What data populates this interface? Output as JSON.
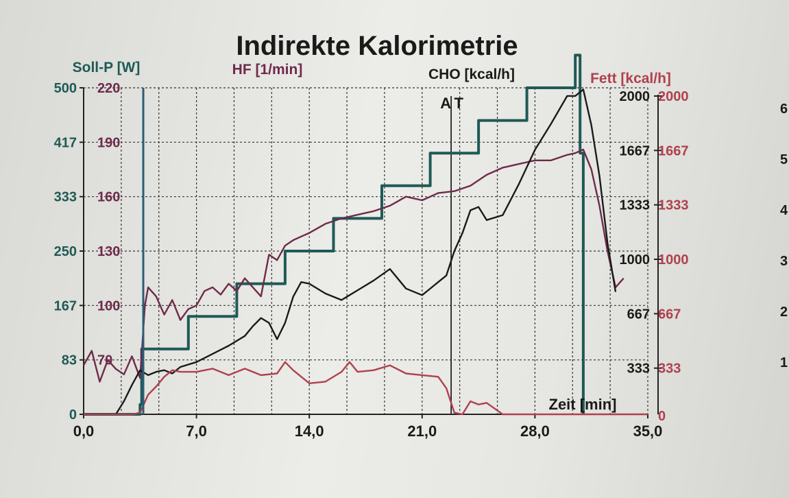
{
  "chart_data": {
    "type": "line",
    "title": "Indirekte Kalorimetrie",
    "xlabel": "Zeit [min]",
    "x_ticks": [
      "0,0",
      "7,0",
      "14,0",
      "21,0",
      "28,0",
      "35,0"
    ],
    "xlim": [
      0,
      35
    ],
    "grid": true,
    "marker": "AT",
    "marker_x": 22.8,
    "axes": {
      "soll_p": {
        "label": "Soll-P [W]",
        "ticks": [
          "0",
          "83",
          "167",
          "250",
          "333",
          "417",
          "500"
        ],
        "range": [
          0,
          500
        ],
        "color": "#1f5a55"
      },
      "hf": {
        "label": "HF [1/min]",
        "ticks": [
          "70",
          "100",
          "130",
          "160",
          "190",
          "220"
        ],
        "range": [
          40,
          220
        ],
        "color": "#6e2a4a"
      },
      "cho": {
        "label": "CHO [kcal/h]",
        "ticks": [
          "333",
          "667",
          "1000",
          "1333",
          "1667",
          "2000"
        ],
        "range": [
          0,
          2000
        ],
        "color": "#1a1a1a"
      },
      "fett": {
        "label": "Fett [kcal/h]",
        "ticks": [
          "0",
          "333",
          "667",
          "1000",
          "1333",
          "1667",
          "2000"
        ],
        "range": [
          0,
          2000
        ],
        "color": "#b0404e"
      }
    },
    "series": [
      {
        "name": "Soll-P [W]",
        "axis": "soll_p",
        "color": "#1f5a55",
        "x": [
          0,
          3.5,
          3.5,
          3.6,
          3.6,
          6.5,
          6.5,
          9.5,
          9.5,
          12.5,
          12.5,
          15.5,
          15.5,
          18.5,
          18.5,
          21.5,
          21.5,
          24.5,
          24.5,
          27.5,
          27.5,
          30.5,
          30.5,
          30.8,
          30.8,
          31.0,
          31.0
        ],
        "y": [
          0,
          0,
          15,
          15,
          100,
          100,
          150,
          150,
          200,
          200,
          250,
          250,
          300,
          300,
          350,
          350,
          400,
          400,
          450,
          450,
          500,
          500,
          550,
          550,
          400,
          400,
          0
        ]
      },
      {
        "name": "HF [1/min]",
        "axis": "hf",
        "color": "#6e2a4a",
        "x": [
          0,
          0.5,
          1,
          1.5,
          2,
          2.5,
          3,
          3.5,
          3.8,
          4,
          4.5,
          5,
          5.5,
          6,
          6.5,
          7,
          7.5,
          8,
          8.5,
          9,
          9.5,
          10,
          10.5,
          11,
          11.5,
          12,
          12.5,
          13,
          13.5,
          14,
          15,
          16,
          17,
          18,
          19,
          20,
          21,
          22,
          23,
          24,
          25,
          26,
          27,
          28,
          29,
          30,
          30.5,
          31,
          31.5,
          32,
          32.5,
          33,
          33.5
        ],
        "y": [
          67,
          75,
          58,
          70,
          65,
          62,
          72,
          60,
          100,
          110,
          105,
          95,
          103,
          92,
          98,
          100,
          108,
          110,
          106,
          112,
          108,
          115,
          110,
          105,
          128,
          125,
          133,
          136,
          138,
          140,
          145,
          148,
          150,
          152,
          155,
          160,
          158,
          162,
          163,
          166,
          172,
          176,
          178,
          180,
          180,
          183,
          184,
          186,
          175,
          155,
          130,
          110,
          115
        ]
      },
      {
        "name": "CHO [kcal/h]",
        "axis": "cho",
        "color": "#1a1a1a",
        "x": [
          0,
          1,
          2,
          2.5,
          3,
          3.5,
          4,
          4.5,
          5,
          5.5,
          6,
          7,
          8,
          9,
          10,
          10.5,
          11,
          11.5,
          12,
          12.5,
          13,
          13.5,
          14,
          15,
          16,
          17,
          18,
          19,
          20,
          21,
          22,
          22.5,
          23,
          23.5,
          24,
          24.5,
          25,
          26,
          27,
          28,
          29,
          30,
          30.5,
          31,
          31.5,
          32,
          32.5,
          33
        ],
        "y": [
          0,
          0,
          0,
          80,
          180,
          270,
          240,
          260,
          270,
          250,
          290,
          320,
          370,
          420,
          480,
          540,
          590,
          560,
          460,
          560,
          720,
          810,
          800,
          740,
          700,
          760,
          820,
          890,
          770,
          730,
          810,
          850,
          1000,
          1110,
          1250,
          1270,
          1190,
          1220,
          1410,
          1620,
          1780,
          1950,
          1950,
          1990,
          1770,
          1460,
          1050,
          750
        ]
      },
      {
        "name": "Fett [kcal/h]",
        "axis": "fett",
        "color": "#b0404e",
        "x": [
          0,
          1,
          2,
          3,
          3.5,
          4,
          4.5,
          5,
          5.5,
          6,
          7,
          8,
          9,
          10,
          11,
          12,
          12.5,
          13,
          14,
          15,
          16,
          16.5,
          17,
          18,
          19,
          20,
          21,
          22,
          22.5,
          23,
          23.5,
          24,
          24.5,
          25,
          26,
          27,
          28,
          29,
          30,
          31,
          32,
          33,
          34,
          35
        ],
        "y": [
          0,
          0,
          0,
          0,
          10,
          120,
          170,
          230,
          270,
          260,
          260,
          280,
          240,
          280,
          240,
          250,
          320,
          270,
          190,
          200,
          260,
          320,
          260,
          270,
          300,
          250,
          240,
          230,
          160,
          10,
          0,
          80,
          60,
          70,
          0,
          0,
          0,
          0,
          0,
          0,
          0,
          0,
          0,
          0
        ]
      }
    ],
    "right_edge_labels": [
      "6",
      "5",
      "4",
      "3",
      "2",
      "1"
    ]
  }
}
